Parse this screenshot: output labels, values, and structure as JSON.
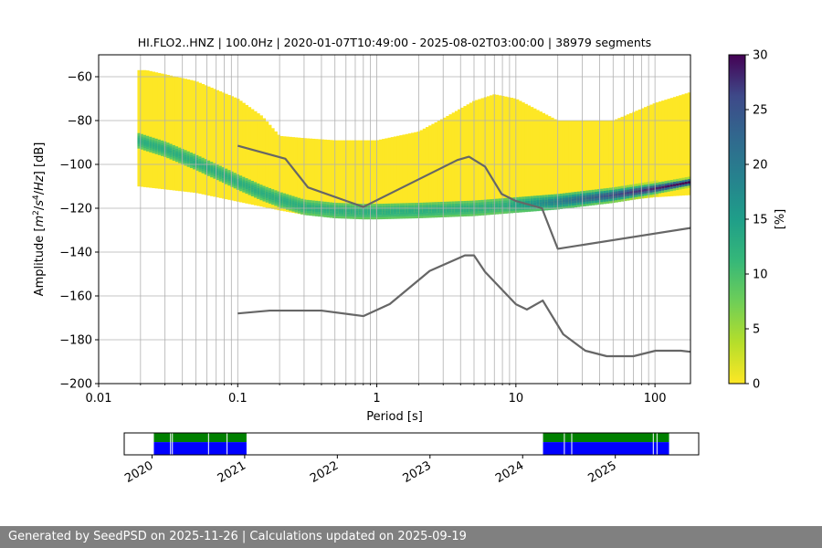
{
  "chart_data": [
    {
      "type": "heatmap",
      "title": "HI.FLO2..HNZ | 100.0Hz | 2020-01-07T10:49:00 - 2025-08-02T03:00:00 | 38979 segments",
      "xlabel": "Period [s]",
      "ylabel_parts": [
        "Amplitude [",
        "m",
        "2",
        "/",
        "s",
        "4",
        "/",
        "Hz",
        "] [dB]"
      ],
      "x_scale": "log",
      "xlim": [
        0.01,
        180
      ],
      "ylim": [
        -200,
        -50
      ],
      "x_ticks": [
        0.01,
        0.1,
        1,
        10,
        100
      ],
      "x_tick_labels": [
        "0.01",
        "0.1",
        "1",
        "10",
        "100"
      ],
      "y_ticks": [
        -200,
        -180,
        -160,
        -140,
        -120,
        -100,
        -80,
        -60
      ],
      "y_tick_labels": [
        "−200",
        "−180",
        "−160",
        "−140",
        "−120",
        "−100",
        "−80",
        "−60"
      ],
      "grid": true,
      "colorbar": {
        "label": "[%]",
        "range": [
          0,
          30
        ],
        "ticks": [
          0,
          5,
          10,
          15,
          20,
          25,
          30
        ],
        "tick_labels": [
          "0",
          "5",
          "10",
          "15",
          "20",
          "25",
          "30"
        ],
        "colormap": "viridis_r"
      },
      "density": {
        "x_range": [
          0.019,
          180
        ],
        "mode_curve": {
          "x": [
            0.019,
            0.03,
            0.05,
            0.08,
            0.1,
            0.15,
            0.2,
            0.3,
            0.5,
            0.8,
            1,
            2,
            5,
            10,
            20,
            50,
            100,
            180
          ],
          "y": [
            -89,
            -93,
            -99,
            -105,
            -108,
            -113,
            -116,
            -119.5,
            -121,
            -121.5,
            -121.5,
            -121,
            -120,
            -118.5,
            -117,
            -114,
            -111,
            -108
          ]
        },
        "lower_edge": {
          "x": [
            0.019,
            0.05,
            0.1,
            0.2,
            0.3,
            0.5,
            1,
            2,
            5,
            10,
            20,
            50,
            100,
            180
          ],
          "y": [
            -110,
            -113,
            -117,
            -121,
            -123,
            -123,
            -123,
            -122,
            -122,
            -121,
            -120,
            -117,
            -115,
            -114
          ]
        },
        "upper_edge": {
          "x": [
            0.019,
            0.022,
            0.05,
            0.1,
            0.15,
            0.2,
            0.3,
            0.5,
            1,
            2,
            3,
            5,
            7,
            10,
            20,
            50,
            100,
            180
          ],
          "y": [
            -57,
            -57,
            -62,
            -70,
            -78,
            -87,
            -88,
            -89,
            -89,
            -85,
            -79,
            -71,
            -68,
            -70,
            -80,
            -80,
            -72,
            -67
          ]
        }
      },
      "series": [
        {
          "name": "",
          "color": "#666666",
          "x": [
            0.1,
            0.22,
            0.32,
            0.8,
            3.8,
            4.6,
            6.0,
            7.9,
            10.0,
            15.4,
            20.0,
            180
          ],
          "y": [
            -91.5,
            -97.4,
            -110.5,
            -119.4,
            -98.0,
            -96.5,
            -101.0,
            -113.5,
            -116.7,
            -120.0,
            -138.5,
            -129.0
          ]
        },
        {
          "name": "",
          "color": "#666666",
          "x": [
            0.1,
            0.17,
            0.4,
            0.8,
            1.24,
            2.4,
            4.3,
            5.0,
            6.0,
            10.0,
            12.0,
            15.6,
            21.9,
            31.6,
            45.0,
            70.0,
            101.0,
            154.0,
            180
          ],
          "y": [
            -168.0,
            -166.7,
            -166.7,
            -169.2,
            -163.7,
            -148.6,
            -141.5,
            -141.5,
            -149.0,
            -163.8,
            -166.2,
            -162.1,
            -177.5,
            -185.0,
            -187.5,
            -187.5,
            -185.0,
            -185.0,
            -185.5
          ]
        }
      ]
    },
    {
      "type": "availability",
      "xlim": [
        2019.7,
        2025.9
      ],
      "x_ticks": [
        2020,
        2021,
        2022,
        2023,
        2024,
        2025
      ],
      "x_tick_labels": [
        "2020",
        "2021",
        "2022",
        "2023",
        "2024",
        "2025"
      ],
      "colors": {
        "availability": "#0000ff",
        "used": "#008000",
        "gap": "#ffffff"
      },
      "periods": [
        {
          "start": 2020.02,
          "end": 2021.02
        },
        {
          "start": 2024.22,
          "end": 2025.58
        }
      ],
      "gaps": [
        2020.2,
        2020.22,
        2020.61,
        2020.81,
        2024.45,
        2024.53,
        2025.41,
        2025.45
      ]
    }
  ],
  "footer": {
    "text": "Generated by SeedPSD on 2025-11-26 | Calculations updated on 2025-09-19"
  }
}
